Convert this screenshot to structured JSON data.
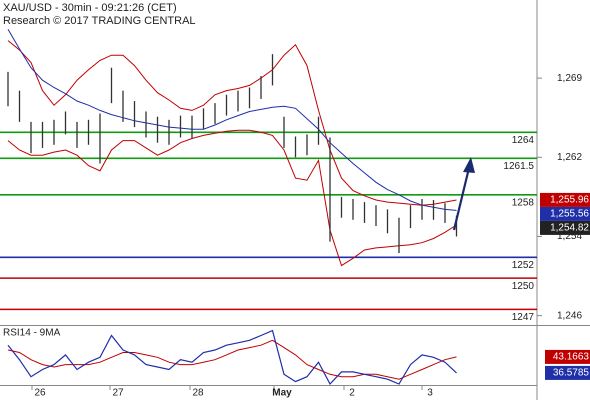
{
  "header": {
    "title": "XAU/USD - 30min - 09:21:26 (CET)",
    "subtitle": "Research © 2017 TRADING CENTRAL"
  },
  "chart_data": {
    "type": "ohlc",
    "bar_color": "#333333",
    "high": [
      1269.8,
      1268.0,
      1265.0,
      1265.0,
      1265.2,
      1266.0,
      1265.0,
      1265.2,
      1265.8,
      1270.2,
      1268.0,
      1267.0,
      1266.0,
      1265.5,
      1265.2,
      1265.6,
      1265.6,
      1266.3,
      1266.8,
      1267.6,
      1268.0,
      1268.3,
      1269.4,
      1271.5,
      1265.5,
      1263.6,
      1263.8,
      1265.5,
      1263.5,
      1257.8,
      1257.6,
      1257.3,
      1257.0,
      1256.6,
      1255.8,
      1257.0,
      1257.6,
      1257.5,
      1257.2,
      1256.0
    ],
    "low": [
      1266.5,
      1265.0,
      1262.0,
      1262.5,
      1262.8,
      1263.8,
      1262.5,
      1262.8,
      1261.0,
      1266.8,
      1265.0,
      1264.5,
      1263.5,
      1263.0,
      1262.8,
      1263.5,
      1263.4,
      1264.3,
      1264.8,
      1265.6,
      1266.0,
      1266.3,
      1267.2,
      1268.5,
      1262.5,
      1261.6,
      1261.8,
      1262.8,
      1253.5,
      1255.8,
      1255.6,
      1255.3,
      1255.0,
      1254.3,
      1252.4,
      1254.8,
      1255.6,
      1255.6,
      1255.3,
      1254.0
    ],
    "ma_color": "#1f2fa8",
    "ma": [
      1273.9,
      1272.0,
      1270.2,
      1269.0,
      1268.3,
      1267.7,
      1267.0,
      1266.6,
      1266.1,
      1265.7,
      1265.4,
      1265.1,
      1264.9,
      1264.7,
      1264.5,
      1264.4,
      1264.3,
      1264.3,
      1264.7,
      1265.2,
      1265.6,
      1266.0,
      1266.2,
      1266.4,
      1266.5,
      1266.3,
      1265.3,
      1264.3,
      1263.0,
      1262.0,
      1261.0,
      1260.1,
      1259.2,
      1258.5,
      1258.0,
      1257.4,
      1257.0,
      1256.8,
      1256.6,
      1256.5
    ],
    "bands_color": "#c00000",
    "bb_upper": [
      1272.8,
      1271.9,
      1270.7,
      1268.0,
      1266.6,
      1267.6,
      1269.0,
      1270.0,
      1270.9,
      1271.4,
      1271.4,
      1270.4,
      1269.0,
      1267.8,
      1267.1,
      1266.3,
      1266.1,
      1266.6,
      1267.6,
      1268.0,
      1268.2,
      1268.5,
      1269.2,
      1270.0,
      1271.4,
      1272.4,
      1270.4,
      1266.1,
      1262.3,
      1259.6,
      1258.4,
      1257.9,
      1257.5,
      1257.3,
      1257.2,
      1257.1,
      1257.0,
      1257.1,
      1257.3,
      1257.5
    ],
    "bb_lower": [
      1263.2,
      1262.3,
      1261.8,
      1261.8,
      1262.1,
      1262.3,
      1261.8,
      1260.8,
      1260.3,
      1262.3,
      1263.2,
      1263.2,
      1262.5,
      1261.8,
      1262.3,
      1263.0,
      1263.4,
      1263.7,
      1263.9,
      1264.1,
      1264.2,
      1264.2,
      1264.0,
      1263.7,
      1262.3,
      1259.6,
      1259.4,
      1261.3,
      1254.6,
      1251.2,
      1251.9,
      1252.7,
      1252.9,
      1253.0,
      1253.1,
      1253.2,
      1253.4,
      1253.8,
      1254.4,
      1255.1
    ],
    "ylim": [
      1245.5,
      1276.7
    ],
    "yticks": [
      {
        "value": 1269.2,
        "label": "1,269"
      },
      {
        "value": 1261.6,
        "label": "1,262"
      },
      {
        "value": 1254.0,
        "label": "1,254"
      },
      {
        "value": 1246.4,
        "label": "1,246"
      }
    ],
    "levels": [
      {
        "value": 1264,
        "color": "#139a13"
      },
      {
        "value": 1261.5,
        "color": "#139a13"
      },
      {
        "value": 1258,
        "color": "#139a13"
      },
      {
        "value": 1252,
        "color": "#1f2fa8"
      },
      {
        "value": 1250,
        "color": "#c00000"
      },
      {
        "value": 1247,
        "color": "#c00000"
      }
    ],
    "price_tags": [
      {
        "value": 1255.96,
        "label": "1,255.96",
        "color": "#c00000"
      },
      {
        "value": 1255.56,
        "label": "1,255.56",
        "color": "#1f2fa8"
      },
      {
        "value": 1254.82,
        "label": "1,254.82",
        "color": "#222222"
      }
    ],
    "x_labels": [
      "26",
      "27",
      "28",
      "May",
      "2",
      "3"
    ],
    "rsi": {
      "title": "RSI14 - 9MA",
      "color": "#1f2fa8",
      "ma_color": "#c00000",
      "ylim": [
        31.6,
        55.9
      ],
      "values": [
        48,
        42,
        35,
        38,
        40,
        44,
        38,
        41,
        43,
        52,
        46,
        44,
        40,
        39,
        38,
        42,
        41,
        45,
        46,
        48,
        49,
        50,
        52,
        54,
        36,
        33,
        35,
        41,
        32,
        37,
        37,
        36,
        35,
        34,
        32,
        40,
        44,
        43,
        41,
        36.5785
      ],
      "ma": [
        46,
        45,
        42,
        40,
        39,
        40,
        40,
        40,
        41,
        43,
        45,
        45,
        44,
        43,
        41,
        40,
        40,
        41,
        42,
        44,
        46,
        47,
        48,
        50,
        47,
        44,
        40,
        38,
        36,
        35,
        35,
        36,
        36,
        35,
        34,
        36,
        38,
        40,
        42,
        43.1663
      ],
      "tags": [
        {
          "value": 43.1663,
          "color": "#c00000"
        },
        {
          "value": 36.5785,
          "color": "#1f2fa8"
        }
      ]
    }
  }
}
